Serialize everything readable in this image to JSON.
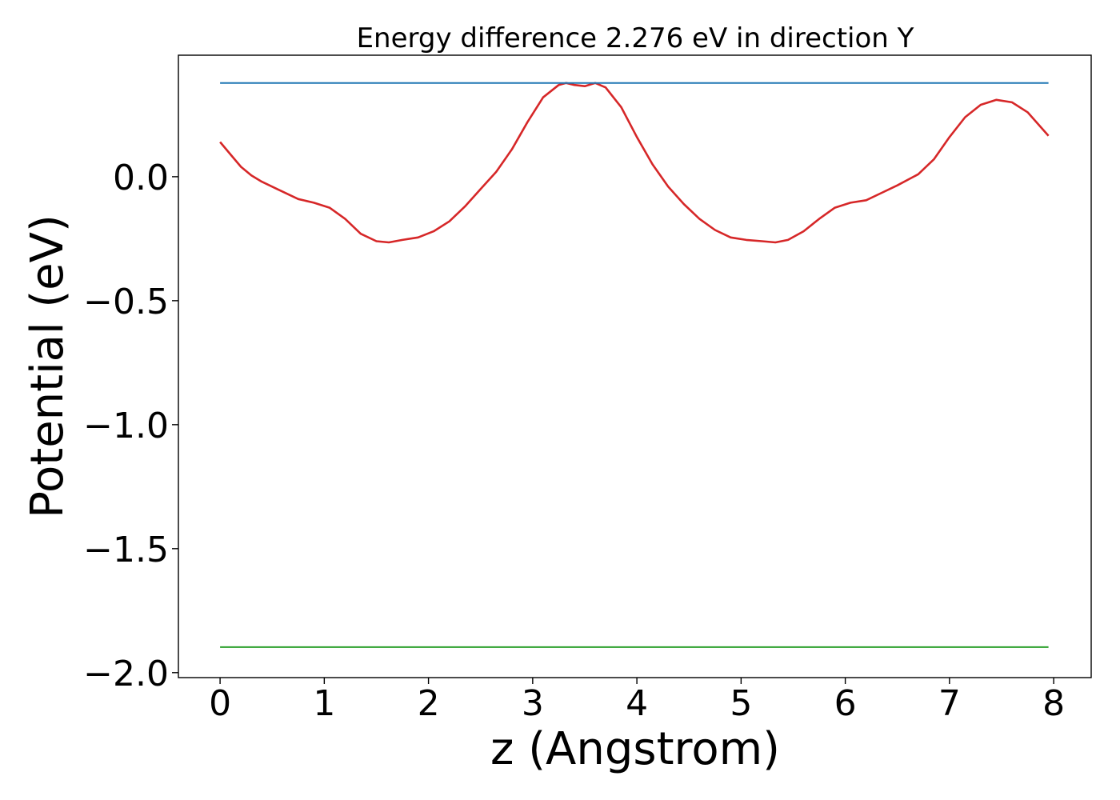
{
  "chart_data": {
    "type": "line",
    "title": "Energy difference 2.276 eV in direction Y",
    "xlabel": "z (Angstrom)",
    "ylabel": "Potential (eV)",
    "xlim": [
      -0.4,
      8.36
    ],
    "ylim": [
      -2.02,
      0.49
    ],
    "xticks": [
      0,
      1,
      2,
      3,
      4,
      5,
      6,
      7,
      8
    ],
    "xtick_labels": [
      "0",
      "1",
      "2",
      "3",
      "4",
      "5",
      "6",
      "7",
      "8"
    ],
    "yticks": [
      0.0,
      -0.5,
      -1.0,
      -1.5,
      -2.0
    ],
    "ytick_labels": [
      "0.0",
      "−0.5",
      "−1.0",
      "−1.5",
      "−2.0"
    ],
    "grid": false,
    "colors": {
      "potential": "#d62728",
      "max_level": "#1f77b4",
      "min_level": "#2ca02c"
    },
    "series": [
      {
        "x": [
          0.0,
          0.1,
          0.2,
          0.3,
          0.4,
          0.55,
          0.75,
          0.9,
          1.05,
          1.2,
          1.35,
          1.5,
          1.62,
          1.75,
          1.9,
          2.05,
          2.2,
          2.35,
          2.5,
          2.65,
          2.8,
          2.95,
          3.1,
          3.25,
          3.32,
          3.4,
          3.5,
          3.6,
          3.7,
          3.85,
          4.0,
          4.15,
          4.3,
          4.45,
          4.6,
          4.75,
          4.9,
          5.05,
          5.2,
          5.33,
          5.45,
          5.6,
          5.75,
          5.9,
          6.05,
          6.2,
          6.35,
          6.5,
          6.7,
          6.85,
          7.0,
          7.15,
          7.3,
          7.45,
          7.6,
          7.75,
          7.95
        ],
        "values": [
          0.14,
          0.09,
          0.04,
          0.005,
          -0.02,
          -0.05,
          -0.09,
          -0.105,
          -0.125,
          -0.17,
          -0.23,
          -0.26,
          -0.265,
          -0.255,
          -0.245,
          -0.22,
          -0.18,
          -0.12,
          -0.05,
          0.02,
          0.11,
          0.22,
          0.32,
          0.37,
          0.378,
          0.37,
          0.365,
          0.378,
          0.36,
          0.28,
          0.16,
          0.05,
          -0.04,
          -0.11,
          -0.17,
          -0.215,
          -0.245,
          -0.255,
          -0.26,
          -0.265,
          -0.255,
          -0.22,
          -0.17,
          -0.125,
          -0.105,
          -0.095,
          -0.065,
          -0.035,
          0.01,
          0.07,
          0.16,
          0.24,
          0.29,
          0.31,
          0.3,
          0.26,
          0.165
        ]
      },
      {
        "x": [
          0.0,
          7.95
        ],
        "values": [
          0.378,
          0.378
        ]
      },
      {
        "x": [
          0.0,
          7.95
        ],
        "values": [
          -1.897,
          -1.897
        ]
      }
    ]
  }
}
